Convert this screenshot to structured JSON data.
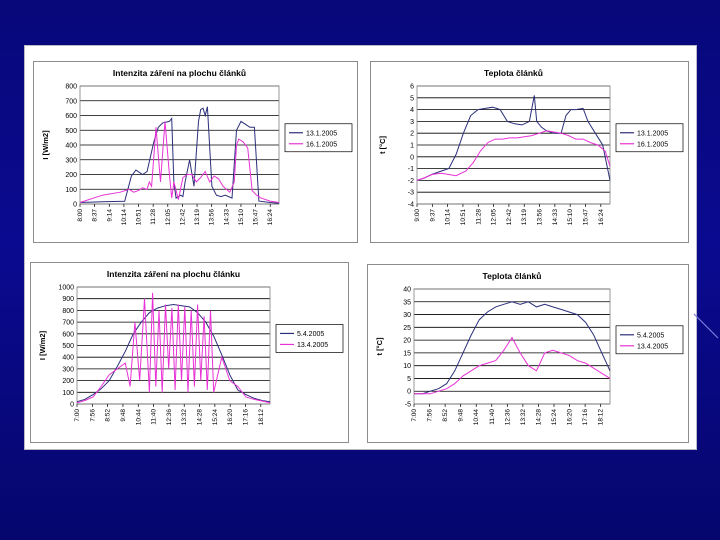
{
  "colors": {
    "series1": "#2b2f7a",
    "series2": "#e832d6",
    "background": "#0a0a8c"
  },
  "chart_data": [
    {
      "type": "line",
      "title": "Intenzita záření na plochu článků",
      "ylabel": "I [W/m2]",
      "xlabel": "",
      "x_ticks": [
        "8:00",
        "8:37",
        "9:14",
        "10:14",
        "10:51",
        "11:28",
        "12:05",
        "12:42",
        "13:19",
        "13:56",
        "14:33",
        "15:10",
        "15:47",
        "16:24"
      ],
      "x_range": [
        8.0,
        16.9
      ],
      "yticks": [
        "0",
        "100",
        "200",
        "300",
        "400",
        "500",
        "600",
        "700",
        "800"
      ],
      "ylim": [
        0,
        800
      ],
      "legend_position": "right",
      "grid": true,
      "series": [
        {
          "name": "13.1.2005",
          "color": "#2b2f7a",
          "x": [
            8.0,
            9.0,
            10.0,
            10.3,
            10.5,
            10.8,
            11.0,
            11.3,
            11.5,
            11.7,
            12.0,
            12.1,
            12.2,
            12.3,
            12.5,
            12.6,
            12.7,
            12.9,
            13.1,
            13.3,
            13.4,
            13.5,
            13.6,
            13.7,
            13.9,
            14.1,
            14.3,
            14.5,
            14.8,
            15.0,
            15.2,
            15.4,
            15.6,
            15.8,
            16.0,
            16.5,
            16.9
          ],
          "y": [
            10,
            15,
            18,
            190,
            230,
            200,
            220,
            420,
            520,
            550,
            560,
            580,
            140,
            40,
            60,
            50,
            150,
            300,
            120,
            560,
            640,
            650,
            600,
            660,
            120,
            60,
            50,
            60,
            40,
            500,
            560,
            540,
            520,
            520,
            20,
            10,
            5
          ]
        },
        {
          "name": "16.1.2005",
          "color": "#e832d6",
          "x": [
            8.0,
            9.0,
            9.8,
            10.2,
            10.4,
            10.6,
            10.8,
            11.0,
            11.1,
            11.2,
            11.4,
            11.6,
            11.8,
            12.0,
            12.1,
            12.2,
            12.4,
            12.6,
            12.8,
            13.0,
            13.2,
            13.4,
            13.6,
            13.8,
            14.0,
            14.2,
            14.4,
            14.7,
            14.9,
            15.0,
            15.1,
            15.3,
            15.5,
            15.7,
            15.9,
            16.1,
            16.5,
            16.9
          ],
          "y": [
            10,
            60,
            80,
            100,
            80,
            90,
            110,
            100,
            150,
            120,
            520,
            150,
            560,
            200,
            40,
            150,
            30,
            180,
            200,
            200,
            150,
            180,
            220,
            150,
            190,
            170,
            120,
            80,
            150,
            400,
            440,
            420,
            380,
            90,
            60,
            40,
            20,
            10
          ]
        }
      ]
    },
    {
      "type": "line",
      "title": "Teplota článků",
      "ylabel": "t [°C]",
      "xlabel": "",
      "x_ticks": [
        "9:00",
        "9:37",
        "10:14",
        "10:51",
        "11:28",
        "12:05",
        "12:42",
        "13:19",
        "13:56",
        "14:33",
        "15:10",
        "15:47",
        "16:24"
      ],
      "x_range": [
        9.0,
        16.9
      ],
      "yticks": [
        "-4",
        "-3",
        "-2",
        "-1",
        "0",
        "1",
        "2",
        "3",
        "4",
        "5",
        "6"
      ],
      "ylim": [
        -4,
        6
      ],
      "legend_position": "right",
      "grid": true,
      "series": [
        {
          "name": "13.1.2005",
          "color": "#2b2f7a",
          "x": [
            9.0,
            9.3,
            9.6,
            10.0,
            10.3,
            10.6,
            10.9,
            11.2,
            11.5,
            11.8,
            12.1,
            12.4,
            12.7,
            13.0,
            13.3,
            13.6,
            13.8,
            13.9,
            14.1,
            14.3,
            14.6,
            14.9,
            15.1,
            15.3,
            15.5,
            15.8,
            16.0,
            16.3,
            16.6,
            16.9
          ],
          "y": [
            -2.0,
            -1.8,
            -1.5,
            -1.2,
            -1.0,
            0.2,
            2.0,
            3.5,
            4.0,
            4.1,
            4.2,
            4.0,
            3.0,
            2.8,
            2.7,
            3.0,
            5.2,
            3.0,
            2.5,
            2.2,
            2.0,
            2.0,
            3.5,
            4.0,
            4.0,
            4.1,
            3.0,
            2.0,
            1.0,
            -2.0
          ]
        },
        {
          "name": "16.1.2005",
          "color": "#e832d6",
          "x": [
            9.0,
            9.3,
            9.6,
            10.0,
            10.3,
            10.6,
            11.0,
            11.3,
            11.6,
            11.9,
            12.2,
            12.5,
            12.8,
            13.1,
            13.4,
            13.7,
            14.0,
            14.3,
            14.6,
            14.9,
            15.2,
            15.5,
            15.8,
            16.1,
            16.4,
            16.7,
            16.9
          ],
          "y": [
            -2.0,
            -1.8,
            -1.5,
            -1.4,
            -1.5,
            -1.6,
            -1.2,
            -0.5,
            0.5,
            1.2,
            1.5,
            1.5,
            1.6,
            1.6,
            1.7,
            1.8,
            2.0,
            2.2,
            2.1,
            2.0,
            1.8,
            1.5,
            1.5,
            1.2,
            1.0,
            0.5,
            -0.8
          ]
        }
      ]
    },
    {
      "type": "line",
      "title": "Intenzita záření na plochu článku",
      "ylabel": "I [W/m2]",
      "xlabel": "",
      "x_ticks": [
        "7:00",
        "7:56",
        "8:52",
        "9:48",
        "10:44",
        "11:40",
        "12:36",
        "13:32",
        "14:28",
        "15:24",
        "16:20",
        "17:16",
        "18:12"
      ],
      "x_range": [
        7.0,
        19.0
      ],
      "yticks": [
        "0",
        "100",
        "200",
        "300",
        "400",
        "500",
        "600",
        "700",
        "800",
        "900",
        "1000"
      ],
      "ylim": [
        0,
        1000
      ],
      "legend_position": "right",
      "grid": true,
      "series": [
        {
          "name": "5.4.2005",
          "color": "#2b2f7a",
          "x": [
            7.0,
            7.5,
            8.0,
            8.5,
            9.0,
            9.5,
            10.0,
            10.5,
            11.0,
            11.5,
            12.0,
            12.5,
            13.0,
            13.5,
            14.0,
            14.5,
            15.0,
            15.5,
            16.0,
            16.5,
            17.0,
            17.5,
            18.0,
            18.5,
            19.0
          ],
          "y": [
            20,
            40,
            80,
            130,
            200,
            320,
            450,
            600,
            700,
            780,
            820,
            840,
            850,
            840,
            830,
            780,
            700,
            580,
            420,
            250,
            120,
            80,
            50,
            30,
            20
          ]
        },
        {
          "name": "13.4.2005",
          "color": "#e832d6",
          "x": [
            7.0,
            7.5,
            8.0,
            8.5,
            9.0,
            9.5,
            10.0,
            10.3,
            10.6,
            10.9,
            11.2,
            11.5,
            11.7,
            11.9,
            12.1,
            12.3,
            12.5,
            12.7,
            12.9,
            13.1,
            13.3,
            13.5,
            13.7,
            13.9,
            14.1,
            14.3,
            14.5,
            14.7,
            14.9,
            15.1,
            15.3,
            15.5,
            16.0,
            16.5,
            17.0,
            17.5,
            18.0,
            19.0
          ],
          "y": [
            10,
            30,
            60,
            150,
            250,
            300,
            350,
            150,
            700,
            200,
            900,
            100,
            950,
            150,
            800,
            100,
            850,
            300,
            820,
            120,
            850,
            200,
            830,
            100,
            800,
            150,
            850,
            200,
            750,
            120,
            800,
            100,
            400,
            200,
            150,
            60,
            40,
            10
          ]
        }
      ]
    },
    {
      "type": "line",
      "title": "Teplota článků",
      "ylabel": "t [°C]",
      "xlabel": "",
      "x_ticks": [
        "7:00",
        "7:56",
        "8:52",
        "9:48",
        "10:44",
        "11:40",
        "12:36",
        "13:32",
        "14:28",
        "15:24",
        "16:20",
        "17:16",
        "18:12"
      ],
      "x_range": [
        7.0,
        19.0
      ],
      "yticks": [
        "-5",
        "0",
        "5",
        "10",
        "15",
        "20",
        "25",
        "30",
        "35",
        "40"
      ],
      "ylim": [
        -5,
        40
      ],
      "legend_position": "right",
      "grid": true,
      "series": [
        {
          "name": "5.4.2005",
          "color": "#2b2f7a",
          "x": [
            7.0,
            7.5,
            8.0,
            8.5,
            9.0,
            9.5,
            10.0,
            10.5,
            11.0,
            11.5,
            12.0,
            12.5,
            13.0,
            13.5,
            14.0,
            14.5,
            15.0,
            15.5,
            16.0,
            16.5,
            17.0,
            17.5,
            18.0,
            18.5,
            19.0
          ],
          "y": [
            -1,
            -1,
            0,
            1,
            3,
            8,
            15,
            22,
            28,
            31,
            33,
            34,
            35,
            34,
            35,
            33,
            34,
            33,
            32,
            31,
            30,
            27,
            22,
            15,
            8
          ]
        },
        {
          "name": "13.4.2005",
          "color": "#e832d6",
          "x": [
            7.0,
            7.5,
            8.0,
            8.5,
            9.0,
            9.5,
            10.0,
            10.5,
            11.0,
            11.5,
            12.0,
            12.5,
            13.0,
            13.5,
            14.0,
            14.5,
            15.0,
            15.5,
            16.0,
            16.5,
            17.0,
            17.5,
            18.0,
            18.5,
            19.0
          ],
          "y": [
            -1,
            -1,
            -1,
            0,
            1,
            3,
            6,
            8,
            10,
            11,
            12,
            16,
            21,
            15,
            10,
            8,
            15,
            16,
            15,
            14,
            12,
            11,
            9,
            7,
            5
          ]
        }
      ]
    }
  ]
}
